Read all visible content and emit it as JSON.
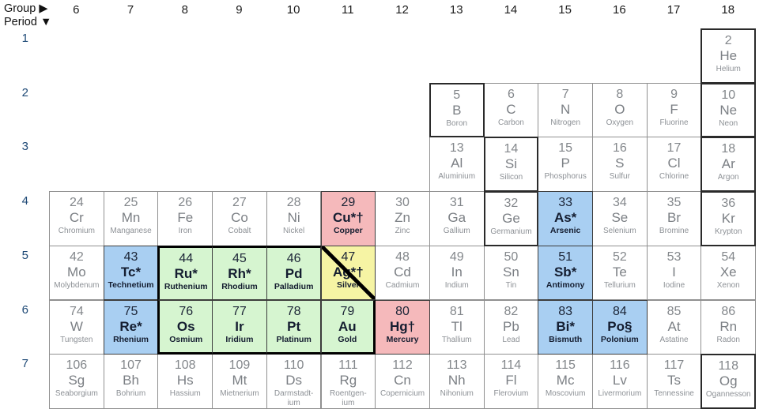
{
  "header": {
    "group_label": "Group ▶",
    "period_label": "Period ▼",
    "groups": [
      "6",
      "7",
      "8",
      "9",
      "10",
      "11",
      "12",
      "13",
      "14",
      "15",
      "16",
      "17",
      "18"
    ],
    "periods": [
      "1",
      "2",
      "3",
      "4",
      "5",
      "6",
      "7"
    ]
  },
  "colors": {
    "pink": "#f5b9bb",
    "blue": "#a9cff2",
    "green": "#d6f5d0",
    "yellow": "#f6f4a4",
    "cell_border": "#909090",
    "heavy_border": "#2a2a2a",
    "pgm_outline": "#000000",
    "normal_text": "#83878b",
    "highlight_text": "#141d30",
    "period_label_color": "#1e4976"
  },
  "elements": [
    {
      "num": "2",
      "sym": "He",
      "name": "Helium",
      "group": 18,
      "period": 1,
      "bg": "",
      "heavy": true
    },
    {
      "num": "5",
      "sym": "B",
      "name": "Boron",
      "group": 13,
      "period": 2,
      "bg": "",
      "heavy": true
    },
    {
      "num": "6",
      "sym": "C",
      "name": "Carbon",
      "group": 14,
      "period": 2,
      "bg": ""
    },
    {
      "num": "7",
      "sym": "N",
      "name": "Nitrogen",
      "group": 15,
      "period": 2,
      "bg": ""
    },
    {
      "num": "8",
      "sym": "O",
      "name": "Oxygen",
      "group": 16,
      "period": 2,
      "bg": ""
    },
    {
      "num": "9",
      "sym": "F",
      "name": "Fluorine",
      "group": 17,
      "period": 2,
      "bg": ""
    },
    {
      "num": "10",
      "sym": "Ne",
      "name": "Neon",
      "group": 18,
      "period": 2,
      "bg": "",
      "heavy": true
    },
    {
      "num": "13",
      "sym": "Al",
      "name": "Aluminium",
      "group": 13,
      "period": 3,
      "bg": ""
    },
    {
      "num": "14",
      "sym": "Si",
      "name": "Silicon",
      "group": 14,
      "period": 3,
      "bg": "",
      "heavy": true
    },
    {
      "num": "15",
      "sym": "P",
      "name": "Phosphorus",
      "group": 15,
      "period": 3,
      "bg": ""
    },
    {
      "num": "16",
      "sym": "S",
      "name": "Sulfur",
      "group": 16,
      "period": 3,
      "bg": ""
    },
    {
      "num": "17",
      "sym": "Cl",
      "name": "Chlorine",
      "group": 17,
      "period": 3,
      "bg": ""
    },
    {
      "num": "18",
      "sym": "Ar",
      "name": "Argon",
      "group": 18,
      "period": 3,
      "bg": "",
      "heavy": true
    },
    {
      "num": "24",
      "sym": "Cr",
      "name": "Chromium",
      "group": 6,
      "period": 4,
      "bg": ""
    },
    {
      "num": "25",
      "sym": "Mn",
      "name": "Manganese",
      "group": 7,
      "period": 4,
      "bg": ""
    },
    {
      "num": "26",
      "sym": "Fe",
      "name": "Iron",
      "group": 8,
      "period": 4,
      "bg": ""
    },
    {
      "num": "27",
      "sym": "Co",
      "name": "Cobalt",
      "group": 9,
      "period": 4,
      "bg": ""
    },
    {
      "num": "28",
      "sym": "Ni",
      "name": "Nickel",
      "group": 10,
      "period": 4,
      "bg": ""
    },
    {
      "num": "29",
      "sym": "Cu*†",
      "name": "Copper",
      "group": 11,
      "period": 4,
      "bg": "pink"
    },
    {
      "num": "30",
      "sym": "Zn",
      "name": "Zinc",
      "group": 12,
      "period": 4,
      "bg": ""
    },
    {
      "num": "31",
      "sym": "Ga",
      "name": "Gallium",
      "group": 13,
      "period": 4,
      "bg": ""
    },
    {
      "num": "32",
      "sym": "Ge",
      "name": "Germanium",
      "group": 14,
      "period": 4,
      "bg": "",
      "heavy": true
    },
    {
      "num": "33",
      "sym": "As*",
      "name": "Arsenic",
      "group": 15,
      "period": 4,
      "bg": "blue"
    },
    {
      "num": "34",
      "sym": "Se",
      "name": "Selenium",
      "group": 16,
      "period": 4,
      "bg": ""
    },
    {
      "num": "35",
      "sym": "Br",
      "name": "Bromine",
      "group": 17,
      "period": 4,
      "bg": ""
    },
    {
      "num": "36",
      "sym": "Kr",
      "name": "Krypton",
      "group": 18,
      "period": 4,
      "bg": "",
      "heavy": true
    },
    {
      "num": "42",
      "sym": "Mo",
      "name": "Molybdenum",
      "group": 6,
      "period": 5,
      "bg": ""
    },
    {
      "num": "43",
      "sym": "Tc*",
      "name": "Technetium",
      "group": 7,
      "period": 5,
      "bg": "blue"
    },
    {
      "num": "44",
      "sym": "Ru*",
      "name": "Ruthenium",
      "group": 8,
      "period": 5,
      "bg": "green",
      "pgm": [
        "t",
        "l"
      ]
    },
    {
      "num": "45",
      "sym": "Rh*",
      "name": "Rhodium",
      "group": 9,
      "period": 5,
      "bg": "green",
      "pgm": [
        "t"
      ]
    },
    {
      "num": "46",
      "sym": "Pd",
      "name": "Palladium",
      "group": 10,
      "period": 5,
      "bg": "green",
      "pgm": [
        "t"
      ]
    },
    {
      "num": "47",
      "sym": "Ag*†",
      "name": "Silver",
      "group": 11,
      "period": 5,
      "bg": "yellow",
      "diagonal": true
    },
    {
      "num": "48",
      "sym": "Cd",
      "name": "Cadmium",
      "group": 12,
      "period": 5,
      "bg": ""
    },
    {
      "num": "49",
      "sym": "In",
      "name": "Indium",
      "group": 13,
      "period": 5,
      "bg": ""
    },
    {
      "num": "50",
      "sym": "Sn",
      "name": "Tin",
      "group": 14,
      "period": 5,
      "bg": ""
    },
    {
      "num": "51",
      "sym": "Sb*",
      "name": "Antimony",
      "group": 15,
      "period": 5,
      "bg": "blue"
    },
    {
      "num": "52",
      "sym": "Te",
      "name": "Tellurium",
      "group": 16,
      "period": 5,
      "bg": ""
    },
    {
      "num": "53",
      "sym": "I",
      "name": "Iodine",
      "group": 17,
      "period": 5,
      "bg": ""
    },
    {
      "num": "54",
      "sym": "Xe",
      "name": "Xenon",
      "group": 18,
      "period": 5,
      "bg": ""
    },
    {
      "num": "74",
      "sym": "W",
      "name": "Tungsten",
      "group": 6,
      "period": 6,
      "bg": ""
    },
    {
      "num": "75",
      "sym": "Re*",
      "name": "Rhenium",
      "group": 7,
      "period": 6,
      "bg": "blue"
    },
    {
      "num": "76",
      "sym": "Os",
      "name": "Osmium",
      "group": 8,
      "period": 6,
      "bg": "green",
      "pgm": [
        "l",
        "b"
      ]
    },
    {
      "num": "77",
      "sym": "Ir",
      "name": "Iridium",
      "group": 9,
      "period": 6,
      "bg": "green",
      "pgm": [
        "b"
      ]
    },
    {
      "num": "78",
      "sym": "Pt",
      "name": "Platinum",
      "group": 10,
      "period": 6,
      "bg": "green",
      "pgm": [
        "b"
      ]
    },
    {
      "num": "79",
      "sym": "Au",
      "name": "Gold",
      "group": 11,
      "period": 6,
      "bg": "green",
      "pgm": [
        "b",
        "r"
      ]
    },
    {
      "num": "80",
      "sym": "Hg†",
      "name": "Mercury",
      "group": 12,
      "period": 6,
      "bg": "pink"
    },
    {
      "num": "81",
      "sym": "Tl",
      "name": "Thallium",
      "group": 13,
      "period": 6,
      "bg": ""
    },
    {
      "num": "82",
      "sym": "Pb",
      "name": "Lead",
      "group": 14,
      "period": 6,
      "bg": ""
    },
    {
      "num": "83",
      "sym": "Bi*",
      "name": "Bismuth",
      "group": 15,
      "period": 6,
      "bg": "blue"
    },
    {
      "num": "84",
      "sym": "Po§",
      "name": "Polonium",
      "group": 16,
      "period": 6,
      "bg": "blue"
    },
    {
      "num": "85",
      "sym": "At",
      "name": "Astatine",
      "group": 17,
      "period": 6,
      "bg": ""
    },
    {
      "num": "86",
      "sym": "Rn",
      "name": "Radon",
      "group": 18,
      "period": 6,
      "bg": ""
    },
    {
      "num": "106",
      "sym": "Sg",
      "name": "Seaborgium",
      "group": 6,
      "period": 7,
      "bg": ""
    },
    {
      "num": "107",
      "sym": "Bh",
      "name": "Bohrium",
      "group": 7,
      "period": 7,
      "bg": ""
    },
    {
      "num": "108",
      "sym": "Hs",
      "name": "Hassium",
      "group": 8,
      "period": 7,
      "bg": ""
    },
    {
      "num": "109",
      "sym": "Mt",
      "name": "Mietnerium",
      "group": 9,
      "period": 7,
      "bg": ""
    },
    {
      "num": "110",
      "sym": "Ds",
      "name": "Darmstadt-\nium",
      "group": 10,
      "period": 7,
      "bg": ""
    },
    {
      "num": "111",
      "sym": "Rg",
      "name": "Roentgen-\nium",
      "group": 11,
      "period": 7,
      "bg": ""
    },
    {
      "num": "112",
      "sym": "Cn",
      "name": "Copernicium",
      "group": 12,
      "period": 7,
      "bg": ""
    },
    {
      "num": "113",
      "sym": "Nh",
      "name": "Nihonium",
      "group": 13,
      "period": 7,
      "bg": ""
    },
    {
      "num": "114",
      "sym": "Fl",
      "name": "Flerovium",
      "group": 14,
      "period": 7,
      "bg": ""
    },
    {
      "num": "115",
      "sym": "Mc",
      "name": "Moscovium",
      "group": 15,
      "period": 7,
      "bg": ""
    },
    {
      "num": "116",
      "sym": "Lv",
      "name": "Livermorium",
      "group": 16,
      "period": 7,
      "bg": ""
    },
    {
      "num": "117",
      "sym": "Ts",
      "name": "Tennessine",
      "group": 17,
      "period": 7,
      "bg": ""
    },
    {
      "num": "118",
      "sym": "Og",
      "name": "Ogannesson",
      "group": 18,
      "period": 7,
      "bg": "",
      "heavy": true
    }
  ]
}
